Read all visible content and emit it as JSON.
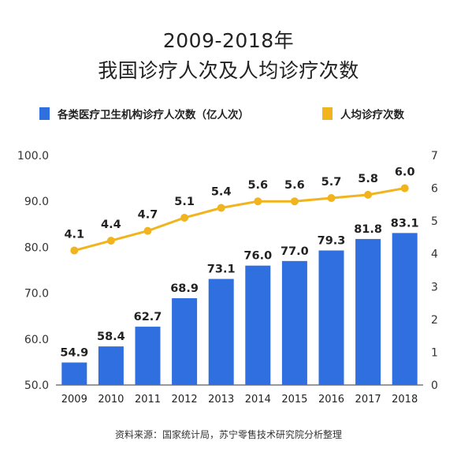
{
  "title_line1": "2009-2018年",
  "title_line2": "我国诊疗人次及人均诊疗次数",
  "source": "资料来源：国家统计局，苏宁零售技术研究院分析整理",
  "colors": {
    "bar": "#2f6fe0",
    "line": "#f1b41c"
  },
  "chart_data": {
    "type": "bar",
    "categories": [
      "2009",
      "2010",
      "2011",
      "2012",
      "2013",
      "2014",
      "2015",
      "2016",
      "2017",
      "2018"
    ],
    "series": [
      {
        "name": "各类医疗卫生机构诊疗人次数（亿人次）",
        "type": "bar",
        "axis": "left",
        "values": [
          54.9,
          58.4,
          62.7,
          68.9,
          73.1,
          76.0,
          77.0,
          79.3,
          81.8,
          83.1
        ],
        "labels": [
          "54.9",
          "58.4",
          "62.7",
          "68.9",
          "73.1",
          "76.0",
          "77.0",
          "79.3",
          "81.8",
          "83.1"
        ]
      },
      {
        "name": "人均诊疗次数",
        "type": "line",
        "axis": "right",
        "values": [
          4.1,
          4.4,
          4.7,
          5.1,
          5.4,
          5.6,
          5.6,
          5.7,
          5.8,
          6.0
        ],
        "labels": [
          "4.1",
          "4.4",
          "4.7",
          "5.1",
          "5.4",
          "5.6",
          "5.6",
          "5.7",
          "5.8",
          "6.0"
        ]
      }
    ],
    "y_left": {
      "range": [
        50,
        100
      ],
      "ticks": [
        "50.0",
        "60.0",
        "70.0",
        "80.0",
        "90.0",
        "100.0"
      ]
    },
    "y_right": {
      "range": [
        0,
        7
      ],
      "ticks": [
        "0",
        "1",
        "2",
        "3",
        "4",
        "5",
        "6",
        "7"
      ]
    },
    "grid": false,
    "legend": "top"
  }
}
